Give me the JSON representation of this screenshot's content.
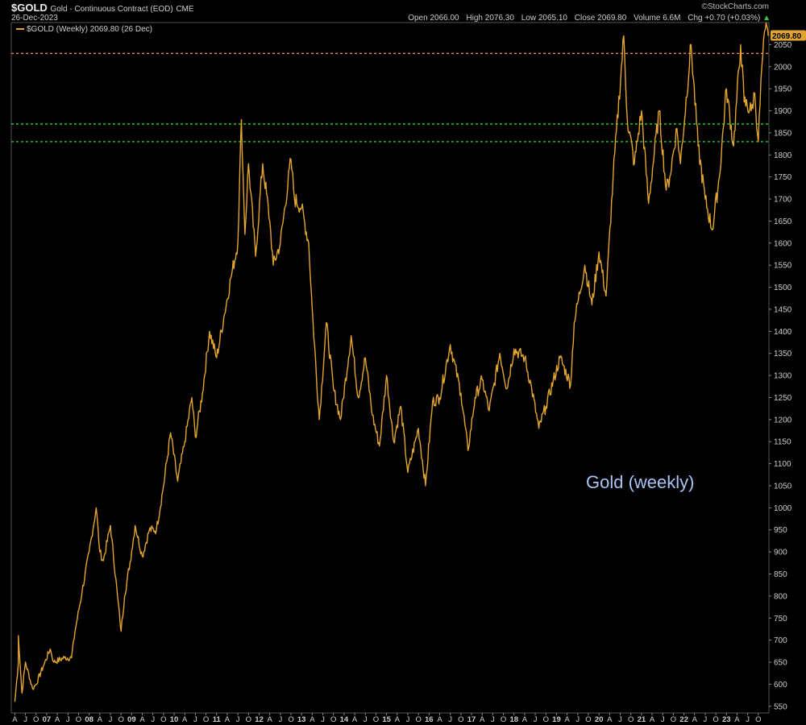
{
  "header": {
    "symbol": "$GOLD",
    "description": "Gold - Continuous Contract (EOD)",
    "exchange": "CME",
    "date": "26-Dec-2023",
    "brand": "©StockCharts.com",
    "open_label": "Open",
    "open": "2066.00",
    "high_label": "High",
    "high": "2076.30",
    "low_label": "Low",
    "low": "2065.10",
    "close_label": "Close",
    "close": "2069.80",
    "volume_label": "Volume",
    "volume": "6.6M",
    "chg_label": "Chg",
    "chg": "+0.70 (+0.03%)",
    "chg_arrow": "▲"
  },
  "legend": {
    "label": "$GOLD (Weekly) 2069.80 (26 Dec)"
  },
  "annotation": "Gold (weekly)",
  "price_tag": "2069.80",
  "colors": {
    "background": "#000000",
    "line": "#E3A530",
    "resistance": "#E8836A",
    "support": "#22DD33",
    "axis_text": "#cccccc",
    "annotation": "#A9C3F5",
    "up": "#2ecc40"
  },
  "chart_data": {
    "type": "line",
    "title": "Gold (weekly)",
    "frequency": "weekly",
    "series": [
      {
        "name": "$GOLD",
        "points": [
          [
            "2006-04",
            560
          ],
          [
            "2006-05",
            650
          ],
          [
            "2006-05",
            710
          ],
          [
            "2006-06",
            580
          ],
          [
            "2006-07",
            650
          ],
          [
            "2006-09",
            590
          ],
          [
            "2006-10",
            600
          ],
          [
            "2006-12",
            640
          ],
          [
            "2007-02",
            680
          ],
          [
            "2007-03",
            650
          ],
          [
            "2007-06",
            660
          ],
          [
            "2007-08",
            660
          ],
          [
            "2007-09",
            720
          ],
          [
            "2007-11",
            810
          ],
          [
            "2008-01",
            900
          ],
          [
            "2008-03",
            1000
          ],
          [
            "2008-04",
            900
          ],
          [
            "2008-05",
            880
          ],
          [
            "2008-07",
            960
          ],
          [
            "2008-09",
            800
          ],
          [
            "2008-10",
            720
          ],
          [
            "2008-11",
            800
          ],
          [
            "2009-01",
            900
          ],
          [
            "2009-02",
            960
          ],
          [
            "2009-04",
            890
          ],
          [
            "2009-06",
            950
          ],
          [
            "2009-08",
            950
          ],
          [
            "2009-10",
            1050
          ],
          [
            "2009-12",
            1170
          ],
          [
            "2010-02",
            1060
          ],
          [
            "2010-04",
            1150
          ],
          [
            "2010-06",
            1250
          ],
          [
            "2010-07",
            1160
          ],
          [
            "2010-09",
            1260
          ],
          [
            "2010-11",
            1400
          ],
          [
            "2011-01",
            1340
          ],
          [
            "2011-03",
            1430
          ],
          [
            "2011-05",
            1520
          ],
          [
            "2011-07",
            1600
          ],
          [
            "2011-08",
            1880
          ],
          [
            "2011-09",
            1620
          ],
          [
            "2011-10",
            1780
          ],
          [
            "2011-12",
            1570
          ],
          [
            "2012-02",
            1780
          ],
          [
            "2012-04",
            1650
          ],
          [
            "2012-05",
            1550
          ],
          [
            "2012-07",
            1600
          ],
          [
            "2012-10",
            1790
          ],
          [
            "2012-11",
            1700
          ],
          [
            "2013-01",
            1680
          ],
          [
            "2013-03",
            1600
          ],
          [
            "2013-04",
            1450
          ],
          [
            "2013-06",
            1200
          ],
          [
            "2013-08",
            1420
          ],
          [
            "2013-10",
            1270
          ],
          [
            "2013-12",
            1200
          ],
          [
            "2014-03",
            1390
          ],
          [
            "2014-05",
            1250
          ],
          [
            "2014-07",
            1340
          ],
          [
            "2014-09",
            1210
          ],
          [
            "2014-11",
            1140
          ],
          [
            "2015-01",
            1300
          ],
          [
            "2015-03",
            1150
          ],
          [
            "2015-05",
            1230
          ],
          [
            "2015-07",
            1080
          ],
          [
            "2015-10",
            1180
          ],
          [
            "2015-12",
            1050
          ],
          [
            "2016-02",
            1240
          ],
          [
            "2016-04",
            1250
          ],
          [
            "2016-07",
            1370
          ],
          [
            "2016-10",
            1260
          ],
          [
            "2016-12",
            1130
          ],
          [
            "2017-02",
            1250
          ],
          [
            "2017-04",
            1290
          ],
          [
            "2017-06",
            1220
          ],
          [
            "2017-09",
            1350
          ],
          [
            "2017-11",
            1270
          ],
          [
            "2018-01",
            1360
          ],
          [
            "2018-04",
            1340
          ],
          [
            "2018-06",
            1270
          ],
          [
            "2018-08",
            1180
          ],
          [
            "2018-10",
            1230
          ],
          [
            "2019-02",
            1340
          ],
          [
            "2019-05",
            1280
          ],
          [
            "2019-06",
            1420
          ],
          [
            "2019-09",
            1550
          ],
          [
            "2019-11",
            1460
          ],
          [
            "2020-01",
            1580
          ],
          [
            "2020-03",
            1480
          ],
          [
            "2020-05",
            1750
          ],
          [
            "2020-08",
            2070
          ],
          [
            "2020-09",
            1880
          ],
          [
            "2020-11",
            1780
          ],
          [
            "2021-01",
            1900
          ],
          [
            "2021-03",
            1690
          ],
          [
            "2021-06",
            1900
          ],
          [
            "2021-08",
            1720
          ],
          [
            "2021-09",
            1750
          ],
          [
            "2021-11",
            1860
          ],
          [
            "2021-12",
            1780
          ],
          [
            "2022-03",
            2050
          ],
          [
            "2022-05",
            1820
          ],
          [
            "2022-07",
            1700
          ],
          [
            "2022-09",
            1630
          ],
          [
            "2022-11",
            1750
          ],
          [
            "2023-01",
            1950
          ],
          [
            "2023-03",
            1820
          ],
          [
            "2023-05",
            2050
          ],
          [
            "2023-06",
            1920
          ],
          [
            "2023-08",
            1900
          ],
          [
            "2023-09",
            1940
          ],
          [
            "2023-10",
            1830
          ],
          [
            "2023-11",
            2000
          ],
          [
            "2023-12",
            2085
          ],
          [
            "2023-12-26",
            2069.8
          ]
        ]
      }
    ],
    "x_range": [
      "2006-03",
      "2024-01"
    ],
    "y_range": [
      535,
      2100
    ],
    "y_ticks": [
      550,
      600,
      650,
      700,
      750,
      800,
      850,
      900,
      950,
      1000,
      1050,
      1100,
      1150,
      1200,
      1250,
      1300,
      1350,
      1400,
      1450,
      1500,
      1550,
      1600,
      1650,
      1700,
      1750,
      1800,
      1850,
      1900,
      1950,
      2000,
      2050
    ],
    "x_tick_years": [
      "07",
      "08",
      "09",
      "10",
      "11",
      "12",
      "13",
      "14",
      "15",
      "16",
      "17",
      "18",
      "19",
      "20",
      "21",
      "22",
      "23"
    ],
    "x_tick_months": [
      "A",
      "J",
      "O"
    ],
    "horizontal_lines": [
      {
        "value": 2030,
        "style": "dashed",
        "color": "#E8836A"
      },
      {
        "value": 1870,
        "style": "dashed",
        "color": "#22DD33"
      },
      {
        "value": 1830,
        "style": "dashed",
        "color": "#22DD33"
      }
    ],
    "grid": false,
    "y_axis_side": "right"
  }
}
